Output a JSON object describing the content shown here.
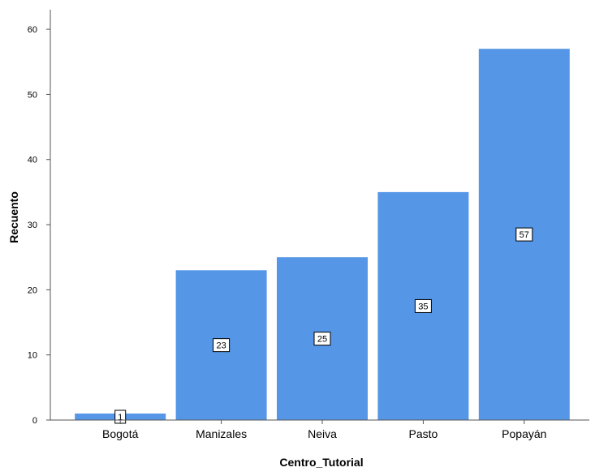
{
  "chart_data": {
    "type": "bar",
    "title": "",
    "xlabel": "Centro_Tutorial",
    "ylabel": "Recuento",
    "categories": [
      "Bogotá",
      "Manizales",
      "Neiva",
      "Pasto",
      "Popayán"
    ],
    "values": [
      1,
      23,
      25,
      35,
      57
    ],
    "data_labels": [
      "1",
      "23",
      "25",
      "35",
      "57"
    ],
    "ylim": [
      0,
      63
    ],
    "yticks": [
      0,
      10,
      20,
      30,
      40,
      50,
      60
    ],
    "ytick_labels": [
      "0",
      "10",
      "20",
      "30",
      "40",
      "50",
      "60"
    ],
    "grid": false,
    "legend": "none",
    "bar_color": "#5596E6",
    "axis_color": "#555555",
    "label_box_color": "#ffffff"
  }
}
